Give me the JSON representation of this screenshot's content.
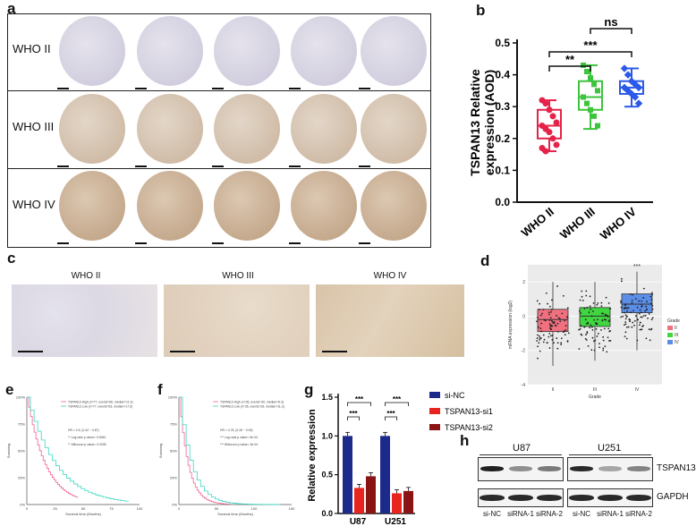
{
  "panel_a": {
    "letter": "a",
    "rows": [
      "WHO II",
      "WHO III",
      "WHO IV"
    ]
  },
  "panel_b": {
    "letter": "b",
    "chart_data": {
      "type": "box",
      "categories": [
        "WHO II",
        "WHO III",
        "WHO IV"
      ],
      "ylabel": "TSPAN13 Relative\nexpression (AOD)",
      "ylim": [
        0.0,
        0.5
      ],
      "yticks": [
        "0.0",
        "0.1",
        "0.2",
        "0.3",
        "0.4",
        "0.5"
      ],
      "colors": [
        "#e5234a",
        "#3cc43c",
        "#2b59e8"
      ],
      "boxes": [
        {
          "min": 0.16,
          "q1": 0.2,
          "median": 0.24,
          "q3": 0.29,
          "max": 0.32
        },
        {
          "min": 0.23,
          "q1": 0.29,
          "median": 0.33,
          "q3": 0.38,
          "max": 0.43
        },
        {
          "min": 0.3,
          "q1": 0.34,
          "median": 0.36,
          "q3": 0.38,
          "max": 0.42
        }
      ],
      "points": [
        [
          0.32,
          0.31,
          0.29,
          0.27,
          0.25,
          0.24,
          0.23,
          0.22,
          0.2,
          0.18,
          0.17,
          0.16
        ],
        [
          0.43,
          0.41,
          0.39,
          0.37,
          0.35,
          0.33,
          0.31,
          0.29,
          0.27,
          0.24
        ],
        [
          0.42,
          0.4,
          0.38,
          0.37,
          0.36,
          0.36,
          0.35,
          0.34,
          0.33,
          0.31
        ]
      ],
      "comparisons": [
        {
          "from": 0,
          "to": 1,
          "label": "**"
        },
        {
          "from": 0,
          "to": 2,
          "label": "***"
        },
        {
          "from": 1,
          "to": 2,
          "label": "ns"
        }
      ]
    }
  },
  "panel_c": {
    "letter": "c",
    "titles": [
      "WHO II",
      "WHO III",
      "WHO IV"
    ]
  },
  "panel_d": {
    "letter": "d",
    "chart_data": {
      "type": "box",
      "categories": [
        "II",
        "III",
        "IV"
      ],
      "xlabel": "Grade",
      "ylabel": "mRNA expression (log2)",
      "ylim": [
        -4,
        3
      ],
      "yticks": [
        "-4",
        "-2",
        "0",
        "2"
      ],
      "annotation": "***",
      "legend": {
        "title": "Grade",
        "items": [
          "II",
          "III",
          "IV"
        ]
      },
      "colors": [
        "#f0707f",
        "#3fd63f",
        "#5b8ee8"
      ],
      "boxes": [
        {
          "min": -2.9,
          "q1": -0.9,
          "median": -0.2,
          "q3": 0.4,
          "max": 2.0
        },
        {
          "min": -2.6,
          "q1": -0.6,
          "median": 0.0,
          "q3": 0.5,
          "max": 2.0
        },
        {
          "min": -2.0,
          "q1": 0.2,
          "median": 0.7,
          "q3": 1.3,
          "max": 2.6
        }
      ]
    }
  },
  "panel_e": {
    "letter": "e",
    "legend": [
      "TSPAN13 High (n=77, events=66, median=11.3)",
      "TSPAN13 Low (n=77, events=63, median=17.5)"
    ],
    "stats": [
      "HR = 0.6, (0.42 ~ 0.87)",
      "** Log-rank p value= 0.0064",
      "** Wilcoxon p value= 0.0035"
    ],
    "ylabel": "Surviving",
    "xlabel": "Survival time (Months)",
    "yticks": [
      "100%",
      "75%",
      "50%",
      "25%",
      "0%"
    ],
    "xticks": [
      "0",
      "25",
      "50",
      "75",
      "100"
    ]
  },
  "panel_f": {
    "letter": "f",
    "legend": [
      "TSPAN13 High (n=35, events=30, median=8.3)",
      "TSPAN13 Low (n=35, events=26, median=11.3)"
    ],
    "stats": [
      "HR = 0.78, (0.26 ~ 0.93)",
      "*** Log-rank p value= 5e-04",
      "*** Wilcoxon p value= 3e-04"
    ],
    "ylabel": "Surviving",
    "xlabel": "Survival time (Months)",
    "yticks": [
      "100%",
      "75%",
      "50%",
      "25%",
      "0%"
    ],
    "xticks": [
      "0",
      "50",
      "100",
      "150"
    ]
  },
  "panel_g": {
    "letter": "g",
    "chart_data": {
      "type": "bar",
      "categories": [
        "U87",
        "U251"
      ],
      "ylabel": "Relative expression",
      "ylim": [
        0.0,
        1.5
      ],
      "yticks": [
        "0.0",
        "0.5",
        "1.0",
        "1.5"
      ],
      "series": [
        {
          "name": "si-NC",
          "color": "#1c2a8c",
          "values": [
            1.0,
            1.0
          ]
        },
        {
          "name": "TSPAN13-si1",
          "color": "#e8241f",
          "values": [
            0.33,
            0.26
          ]
        },
        {
          "name": "TSPAN13-si2",
          "color": "#8a1414",
          "values": [
            0.48,
            0.29
          ]
        }
      ],
      "significance": "***"
    }
  },
  "panel_h": {
    "letter": "h",
    "groups": [
      "U87",
      "U251"
    ],
    "proteins": [
      "TSPAN13",
      "GAPDH"
    ],
    "lanes": [
      "si-NC",
      "siRNA-1",
      "siRNA-2",
      "si-NC",
      "siRNA-1",
      "siRNA-2"
    ]
  }
}
